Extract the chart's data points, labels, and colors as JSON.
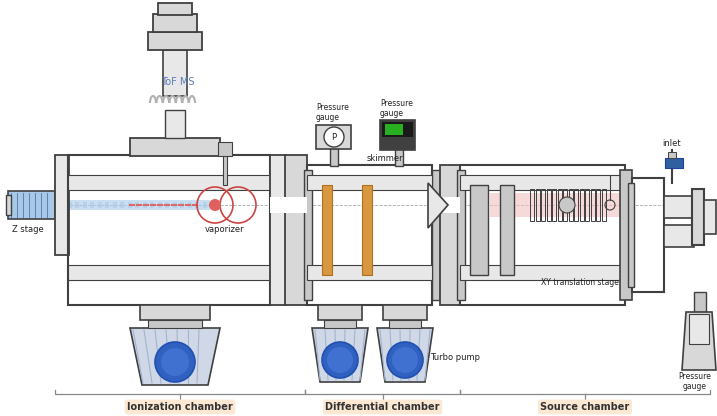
{
  "bg_color": "#ffffff",
  "lc": "#555555",
  "dg": "#404040",
  "gg": "#999999",
  "bk": "#222222",
  "gray_fill": "#d8d8d8",
  "gray_fill2": "#e8e8e8",
  "gray_fill3": "#c8c8c8",
  "beam_blue": "#a8c8e8",
  "beam_red": "#e06060",
  "beam_pink": "#f0c0c0",
  "orange": "#d89840",
  "pump_blue": "#3060c0",
  "pump_blue2": "#4070d0",
  "chamber_label_bg": "#fde8d4",
  "tof_color": "#5a7ab8",
  "labels": {
    "tof": "ToF MS",
    "vaporizer": "vaporizer",
    "zstage": "Z stage",
    "skimmer": "skimmer",
    "xystage": "XY translation stage",
    "inlet": "inlet",
    "turbo": "Turbo pump",
    "pressure": "Pressure\ngauge",
    "ion_ch": "Ionization chamber",
    "diff_ch": "Differential chamber",
    "src_ch": "Source chamber"
  }
}
